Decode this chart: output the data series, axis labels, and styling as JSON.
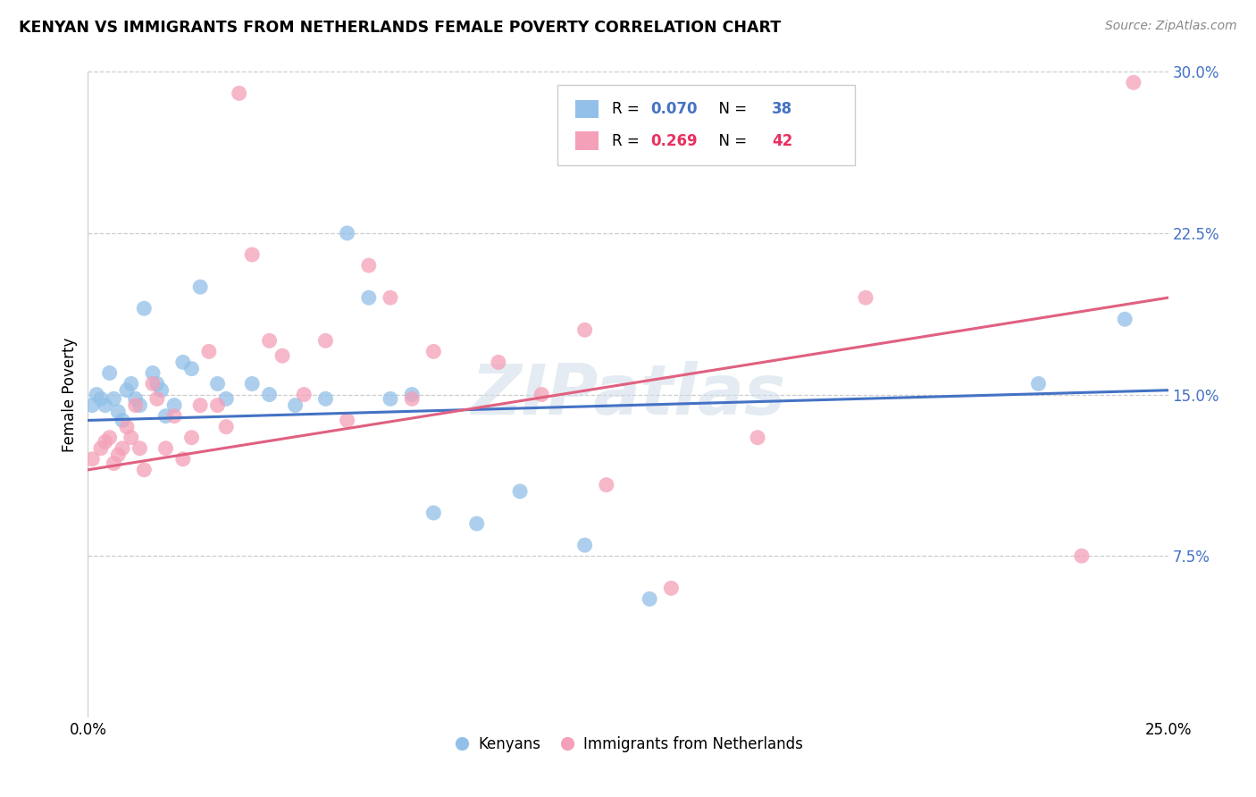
{
  "title": "KENYAN VS IMMIGRANTS FROM NETHERLANDS FEMALE POVERTY CORRELATION CHART",
  "source": "Source: ZipAtlas.com",
  "ylabel": "Female Poverty",
  "xlim": [
    0.0,
    0.25
  ],
  "ylim": [
    0.0,
    0.3
  ],
  "y_ticks_right": [
    0.075,
    0.15,
    0.225,
    0.3
  ],
  "y_tick_labels_right": [
    "7.5%",
    "15.0%",
    "22.5%",
    "30.0%"
  ],
  "legend_label1": "Kenyans",
  "legend_label2": "Immigrants from Netherlands",
  "blue_color": "#92c0e8",
  "pink_color": "#f4a0b8",
  "line_blue": "#4472c4",
  "line_pink": "#e06080",
  "watermark": "ZIPatlas",
  "blue_R": 0.07,
  "blue_N": 38,
  "pink_R": 0.269,
  "pink_N": 42,
  "blue_x": [
    0.001,
    0.002,
    0.003,
    0.004,
    0.005,
    0.006,
    0.007,
    0.008,
    0.009,
    0.01,
    0.011,
    0.012,
    0.013,
    0.015,
    0.016,
    0.017,
    0.018,
    0.02,
    0.022,
    0.024,
    0.026,
    0.03,
    0.032,
    0.038,
    0.042,
    0.048,
    0.055,
    0.06,
    0.065,
    0.07,
    0.075,
    0.08,
    0.09,
    0.1,
    0.115,
    0.13,
    0.22,
    0.24
  ],
  "blue_y": [
    0.145,
    0.15,
    0.148,
    0.145,
    0.16,
    0.148,
    0.142,
    0.138,
    0.152,
    0.155,
    0.148,
    0.145,
    0.19,
    0.16,
    0.155,
    0.152,
    0.14,
    0.145,
    0.165,
    0.162,
    0.2,
    0.155,
    0.148,
    0.155,
    0.15,
    0.145,
    0.148,
    0.225,
    0.195,
    0.148,
    0.15,
    0.095,
    0.09,
    0.105,
    0.08,
    0.055,
    0.155,
    0.185
  ],
  "pink_x": [
    0.001,
    0.003,
    0.004,
    0.005,
    0.006,
    0.007,
    0.008,
    0.009,
    0.01,
    0.011,
    0.012,
    0.013,
    0.015,
    0.016,
    0.018,
    0.02,
    0.022,
    0.024,
    0.026,
    0.028,
    0.03,
    0.032,
    0.035,
    0.038,
    0.042,
    0.045,
    0.05,
    0.055,
    0.06,
    0.065,
    0.07,
    0.075,
    0.08,
    0.095,
    0.105,
    0.115,
    0.12,
    0.135,
    0.155,
    0.18,
    0.23,
    0.242
  ],
  "pink_y": [
    0.12,
    0.125,
    0.128,
    0.13,
    0.118,
    0.122,
    0.125,
    0.135,
    0.13,
    0.145,
    0.125,
    0.115,
    0.155,
    0.148,
    0.125,
    0.14,
    0.12,
    0.13,
    0.145,
    0.17,
    0.145,
    0.135,
    0.29,
    0.215,
    0.175,
    0.168,
    0.15,
    0.175,
    0.138,
    0.21,
    0.195,
    0.148,
    0.17,
    0.165,
    0.15,
    0.18,
    0.108,
    0.06,
    0.13,
    0.195,
    0.075,
    0.295
  ]
}
